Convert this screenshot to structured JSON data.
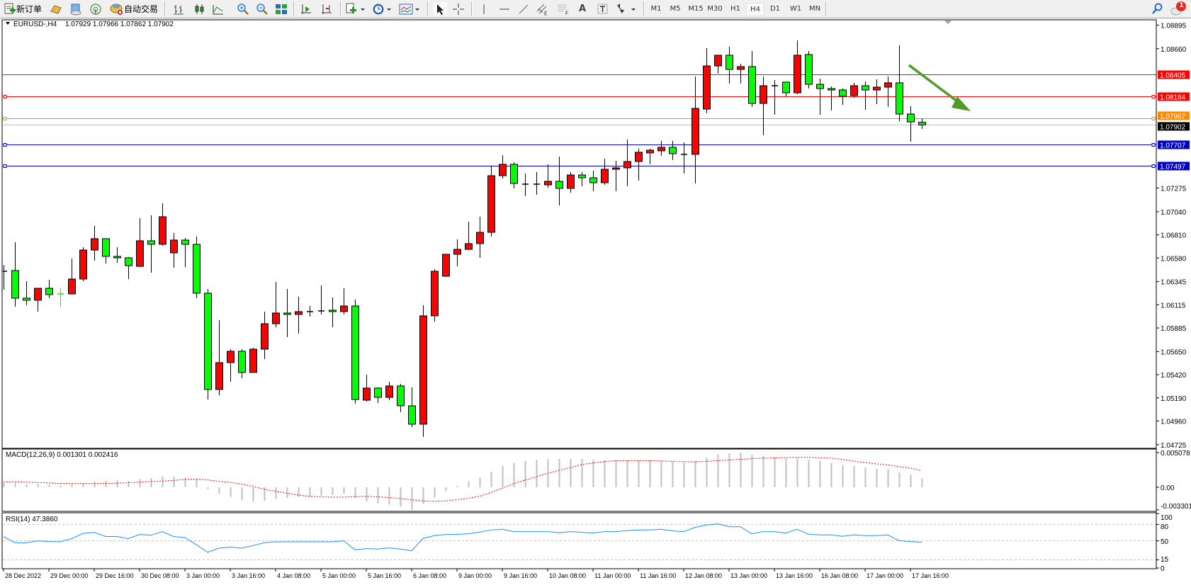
{
  "toolbar": {
    "new_order_label": "新订单",
    "autotrade_label": "自动交易",
    "timeframes": [
      "M1",
      "M5",
      "M15",
      "M30",
      "H1",
      "H4",
      "D1",
      "W1",
      "MN"
    ],
    "active_timeframe": "H4",
    "notification_count": "1",
    "text_tool_label": "A"
  },
  "chart": {
    "symbol": "EURUSD-,H4",
    "ohlc_text": "1.07929 1.07966 1.07862 1.07902",
    "price_axis_labels": [
      "1.08895",
      "1.08660",
      "1.07275",
      "1.07040",
      "1.06810",
      "1.06580",
      "1.06345",
      "1.06115",
      "1.05885",
      "1.05650",
      "1.05420",
      "1.05190",
      "1.04960",
      "1.04725"
    ],
    "horizontal_lines": [
      {
        "price": "1.08405",
        "color": "#ff0000",
        "markers": false
      },
      {
        "price": "1.08184",
        "color": "#ff0000",
        "markers": true
      },
      {
        "price": "1.07967",
        "color": "#ff8c00",
        "markers": true
      },
      {
        "price": "1.07707",
        "color": "#0000c8",
        "markers": true
      },
      {
        "price": "1.07497",
        "color": "#0000c8",
        "markers": true
      }
    ],
    "bid_line": {
      "price": "1.07902",
      "color": "#c0c0c0",
      "label_bg": "#000000"
    },
    "bull_color": "#ff0000",
    "bear_color": "#00ff00",
    "annotation_arrow_color": "#4e9a2a",
    "time_labels": [
      "28 Dec 2022",
      "29 Dec 00:00",
      "29 Dec 16:00",
      "30 Dec 08:00",
      "3 Jan 00:00",
      "3 Jan 16:00",
      "4 Jan 08:00",
      "5 Jan 00:00",
      "5 Jan 16:00",
      "6 Jan 08:00",
      "9 Jan 00:00",
      "9 Jan 16:00",
      "10 Jan 08:00",
      "11 Jan 00:00",
      "11 Jan 16:00",
      "12 Jan 08:00",
      "13 Jan 00:00",
      "13 Jan 16:00",
      "16 Jan 08:00",
      "17 Jan 00:00",
      "17 Jan 16:00"
    ]
  },
  "macd": {
    "label": "MACD(12,26,9) 0.001301 0.002416",
    "axis_labels": [
      "0.005078",
      "0.00",
      "-0.003301"
    ],
    "histogram_color": "#c0c0c0",
    "signal_color": "#ff0000"
  },
  "rsi": {
    "label": "RSI(14) 47.3860",
    "axis_labels": [
      "100",
      "80",
      "50",
      "15",
      "0"
    ],
    "line_color": "#1e90ff"
  },
  "chart_data": {
    "type": "candlestick",
    "symbol": "EURUSD-",
    "timeframe": "H4",
    "ylim": [
      1.04725,
      1.08895
    ],
    "grid": false,
    "ohlc": [
      [
        1.06448,
        1.06512,
        1.06265,
        1.06448
      ],
      [
        1.06455,
        1.06737,
        1.06096,
        1.06181
      ],
      [
        1.06181,
        1.0635,
        1.0611,
        1.0616
      ],
      [
        1.0616,
        1.06279,
        1.06047,
        1.06279
      ],
      [
        1.06279,
        1.06364,
        1.06181,
        1.06216
      ],
      [
        1.06223,
        1.06279,
        1.06096,
        1.06223
      ],
      [
        1.06223,
        1.06575,
        1.06223,
        1.06371
      ],
      [
        1.06371,
        1.06687,
        1.0635,
        1.06659
      ],
      [
        1.06659,
        1.06899,
        1.06554,
        1.06772
      ],
      [
        1.06772,
        1.06772,
        1.06526,
        1.06596
      ],
      [
        1.06596,
        1.06687,
        1.06533,
        1.06582
      ],
      [
        1.06582,
        1.06589,
        1.06371,
        1.06504
      ],
      [
        1.06497,
        1.06976,
        1.0649,
        1.06751
      ],
      [
        1.06751,
        1.07004,
        1.06434,
        1.06716
      ],
      [
        1.06716,
        1.07124,
        1.06702,
        1.0699
      ],
      [
        1.06631,
        1.06828,
        1.06483,
        1.06758
      ],
      [
        1.06758,
        1.06779,
        1.0649,
        1.06716
      ],
      [
        1.06716,
        1.06793,
        1.06181,
        1.0623
      ],
      [
        1.0623,
        1.06272,
        1.05174,
        1.05273
      ],
      [
        1.05273,
        1.05962,
        1.05216,
        1.0554
      ],
      [
        1.0554,
        1.05674,
        1.0535,
        1.05653
      ],
      [
        1.05653,
        1.05674,
        1.05385,
        1.05442
      ],
      [
        1.05442,
        1.05688,
        1.05442,
        1.05674
      ],
      [
        1.05674,
        1.06047,
        1.05575,
        1.05927
      ],
      [
        1.05927,
        1.06343,
        1.05892,
        1.06033
      ],
      [
        1.06033,
        1.06272,
        1.05794,
        1.06019
      ],
      [
        1.06019,
        1.06195,
        1.05829,
        1.06047
      ],
      [
        1.06047,
        1.06103,
        1.05998,
        1.06047
      ],
      [
        1.06054,
        1.06307,
        1.06019,
        1.06054
      ],
      [
        1.06061,
        1.06188,
        1.05892,
        1.06047
      ],
      [
        1.06047,
        1.06279,
        1.06019,
        1.06103
      ],
      [
        1.06103,
        1.06167,
        1.05132,
        1.05174
      ],
      [
        1.05167,
        1.0542,
        1.05153,
        1.05287
      ],
      [
        1.05287,
        1.05294,
        1.05139,
        1.05195
      ],
      [
        1.05195,
        1.0535,
        1.05167,
        1.05308
      ],
      [
        1.05308,
        1.05329,
        1.05047,
        1.05111
      ],
      [
        1.05111,
        1.05294,
        1.049,
        1.04928
      ],
      [
        1.04928,
        1.0611,
        1.04801,
        1.06005
      ],
      [
        1.06005,
        1.06469,
        1.05948,
        1.06448
      ],
      [
        1.06399,
        1.06617,
        1.06392,
        1.06617
      ],
      [
        1.06617,
        1.06765,
        1.06497,
        1.06666
      ],
      [
        1.06666,
        1.06941,
        1.06659,
        1.06723
      ],
      [
        1.06723,
        1.0699,
        1.06582,
        1.06835
      ],
      [
        1.06835,
        1.07497,
        1.06793,
        1.07398
      ],
      [
        1.07398,
        1.07603,
        1.0737,
        1.07511
      ],
      [
        1.07511,
        1.07532,
        1.07272,
        1.07321
      ],
      [
        1.07314,
        1.0742,
        1.07194,
        1.07314
      ],
      [
        1.07314,
        1.07434,
        1.07208,
        1.07314
      ],
      [
        1.07307,
        1.07511,
        1.07279,
        1.07342
      ],
      [
        1.07342,
        1.07588,
        1.07103,
        1.07272
      ],
      [
        1.07272,
        1.07434,
        1.07229,
        1.07405
      ],
      [
        1.07405,
        1.07434,
        1.07293,
        1.07377
      ],
      [
        1.07377,
        1.07448,
        1.07244,
        1.07328
      ],
      [
        1.07328,
        1.07567,
        1.07307,
        1.07462
      ],
      [
        1.07462,
        1.07546,
        1.07244,
        1.07476
      ],
      [
        1.07476,
        1.07757,
        1.07293,
        1.07539
      ],
      [
        1.07539,
        1.07666,
        1.07349,
        1.07631
      ],
      [
        1.07624,
        1.07666,
        1.07511,
        1.07652
      ],
      [
        1.07645,
        1.07743,
        1.07596,
        1.0768
      ],
      [
        1.0768,
        1.07743,
        1.07553,
        1.07617
      ],
      [
        1.0761,
        1.07729,
        1.0742,
        1.0761
      ],
      [
        1.0761,
        1.08384,
        1.07321,
        1.08067
      ],
      [
        1.0806,
        1.08665,
        1.08018,
        1.08489
      ],
      [
        1.08489,
        1.08595,
        1.08412,
        1.08595
      ],
      [
        1.08595,
        1.0868,
        1.08314,
        1.08454
      ],
      [
        1.08454,
        1.08511,
        1.08314,
        1.08482
      ],
      [
        1.08482,
        1.08637,
        1.08081,
        1.08116
      ],
      [
        1.08116,
        1.08384,
        1.078,
        1.08292
      ],
      [
        1.08292,
        1.08349,
        1.08004,
        1.08292
      ],
      [
        1.08328,
        1.08328,
        1.08187,
        1.08222
      ],
      [
        1.08222,
        1.08743,
        1.08208,
        1.08595
      ],
      [
        1.08602,
        1.08637,
        1.08264,
        1.08306
      ],
      [
        1.08306,
        1.08363,
        1.08004,
        1.08264
      ],
      [
        1.08264,
        1.08285,
        1.08046,
        1.0825
      ],
      [
        1.0825,
        1.08264,
        1.08102,
        1.08187
      ],
      [
        1.08194,
        1.08321,
        1.08173,
        1.08292
      ],
      [
        1.08292,
        1.08335,
        1.08053,
        1.0825
      ],
      [
        1.0825,
        1.08356,
        1.08109,
        1.08278
      ],
      [
        1.08278,
        1.08384,
        1.08081,
        1.08321
      ],
      [
        1.08321,
        1.08694,
        1.0794,
        1.08011
      ],
      [
        1.08011,
        1.08088,
        1.07736,
        1.07933
      ],
      [
        1.07929,
        1.07966,
        1.07862,
        1.07902
      ]
    ],
    "macd_ylim": [
      -0.003301,
      0.005078
    ],
    "macd_histogram": [
      0.00066,
      0.00066,
      0.00047,
      0.00047,
      0.00038,
      0.00028,
      0.00047,
      0.00056,
      0.00085,
      0.00094,
      0.00103,
      0.00094,
      0.00122,
      0.00132,
      0.0016,
      0.0016,
      0.00141,
      0.00122,
      -0.00028,
      -0.00094,
      -0.00141,
      -0.00188,
      -0.00207,
      -0.00197,
      -0.00169,
      -0.0016,
      -0.00141,
      -0.00132,
      -0.00122,
      -0.00113,
      -0.00094,
      -0.0016,
      -0.00207,
      -0.00235,
      -0.00254,
      -0.00282,
      -0.003301,
      -0.00244,
      -0.0015,
      -0.00056,
      0.00019,
      0.00085,
      0.00141,
      0.00226,
      0.0031,
      0.00357,
      0.00385,
      0.00404,
      0.00414,
      0.00414,
      0.00414,
      0.00414,
      0.00404,
      0.00395,
      0.00395,
      0.00395,
      0.00395,
      0.00395,
      0.00385,
      0.00376,
      0.00367,
      0.00385,
      0.00432,
      0.00479,
      0.00498,
      0.005078,
      0.00479,
      0.00461,
      0.00442,
      0.00423,
      0.00432,
      0.00404,
      0.00385,
      0.00357,
      0.00329,
      0.0031,
      0.00291,
      0.00273,
      0.00263,
      0.00216,
      0.00179,
      0.001301
    ],
    "macd_signal": [
      0.0008,
      0.0008,
      0.00074,
      0.0007,
      0.00064,
      0.00057,
      0.00054,
      0.00054,
      0.00054,
      0.00057,
      0.0006,
      0.00067,
      0.00074,
      0.00084,
      0.0009,
      0.001,
      0.00114,
      0.0012,
      0.00107,
      0.00087,
      0.0007,
      0.00047,
      0.00013,
      -0.00027,
      -0.0006,
      -0.00087,
      -0.00114,
      -0.00134,
      -0.00141,
      -0.00144,
      -0.00144,
      -0.00137,
      -0.00134,
      -0.00141,
      -0.0015,
      -0.00164,
      -0.00184,
      -0.00201,
      -0.00204,
      -0.00201,
      -0.00181,
      -0.00161,
      -0.00131,
      -0.00077,
      -0.00013,
      0.00054,
      0.00104,
      0.00154,
      0.00204,
      0.00248,
      0.00288,
      0.00332,
      0.00355,
      0.00375,
      0.00389,
      0.00389,
      0.00389,
      0.00389,
      0.00385,
      0.00379,
      0.00375,
      0.00372,
      0.00379,
      0.00389,
      0.00399,
      0.00409,
      0.00419,
      0.00425,
      0.00429,
      0.00436,
      0.00439,
      0.00439,
      0.00432,
      0.00425,
      0.00409,
      0.00382,
      0.00362,
      0.00342,
      0.00328,
      0.00302,
      0.00281,
      0.002416
    ],
    "rsi_levels": [
      80,
      50,
      15
    ],
    "rsi": [
      58,
      46.5,
      46.5,
      50,
      48.7,
      48.3,
      54,
      63.5,
      65.7,
      58,
      58,
      54,
      61.7,
      60.4,
      67,
      58,
      56,
      43,
      29,
      36.5,
      38.3,
      36.5,
      41.3,
      46.5,
      48.3,
      48.3,
      48.3,
      48.3,
      48.3,
      48.3,
      50,
      33.5,
      35.7,
      34.8,
      37,
      34.8,
      31.7,
      54.3,
      59.6,
      61.7,
      61.7,
      63,
      66,
      70,
      71.3,
      67,
      67,
      67,
      67,
      64.8,
      67,
      65.7,
      64.3,
      67,
      67,
      68.7,
      70,
      70,
      71.3,
      68.3,
      67,
      74.8,
      79,
      81.3,
      76,
      76,
      63,
      67,
      67,
      64.3,
      71.3,
      62.2,
      60.9,
      60.9,
      58.3,
      60.9,
      59.6,
      59.6,
      60.9,
      50.4,
      48.7,
      47.386
    ]
  }
}
